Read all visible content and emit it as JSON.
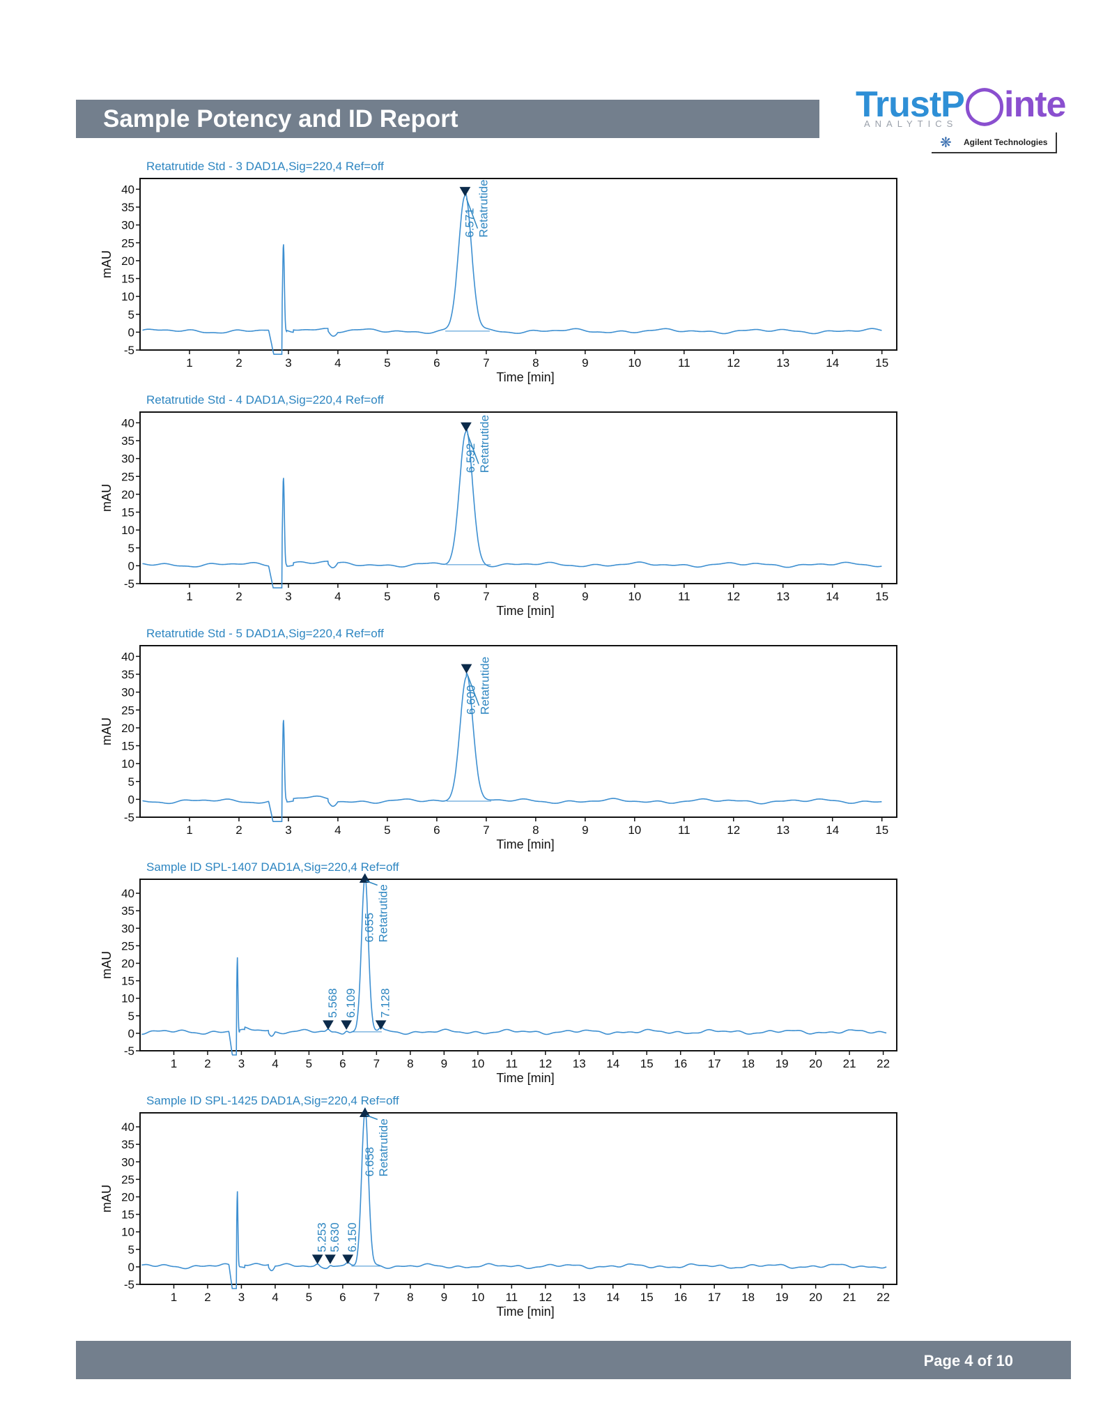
{
  "report": {
    "title": "Sample Potency and ID Report",
    "page_label": "Page 4 of 10"
  },
  "logo": {
    "brand_part1": "TrustP",
    "brand_part2": "inte",
    "tagline": "ANALYTICS",
    "partner": "Agilent Technologies",
    "color_primary": "#2e8fd6",
    "color_secondary": "#8a4fcf"
  },
  "colors": {
    "trace": "#3d8fd1",
    "header_bar": "#737f8d",
    "label": "#2e86c1"
  },
  "chart_data": [
    {
      "type": "line",
      "title": "Retatrutide Std - 3 DAD1A,Sig=220,4  Ref=off",
      "xlabel": "Time [min]",
      "ylabel": "mAU",
      "xlim": [
        0,
        15.3
      ],
      "ylim": [
        -5,
        43
      ],
      "xticks": [
        1,
        2,
        3,
        4,
        5,
        6,
        7,
        8,
        9,
        10,
        11,
        12,
        13,
        14,
        15
      ],
      "yticks": [
        -5,
        0,
        5,
        10,
        15,
        20,
        25,
        30,
        35,
        40
      ],
      "baseline": 0.3,
      "solvent_spike": {
        "dip_x": 2.72,
        "spike_x": 2.9,
        "height": 24.5
      },
      "peaks": [
        {
          "rt": 6.571,
          "height": 37.5,
          "sigma": 0.13,
          "label": "6.571",
          "name": "Retatrutide",
          "marker": "down"
        }
      ]
    },
    {
      "type": "line",
      "title": "Retatrutide Std - 4 DAD1A,Sig=220,4  Ref=off",
      "xlabel": "Time [min]",
      "ylabel": "mAU",
      "xlim": [
        0,
        15.3
      ],
      "ylim": [
        -5,
        43
      ],
      "xticks": [
        1,
        2,
        3,
        4,
        5,
        6,
        7,
        8,
        9,
        10,
        11,
        12,
        13,
        14,
        15
      ],
      "yticks": [
        -5,
        0,
        5,
        10,
        15,
        20,
        25,
        30,
        35,
        40
      ],
      "baseline": 0.3,
      "solvent_spike": {
        "dip_x": 2.72,
        "spike_x": 2.9,
        "height": 24.5
      },
      "peaks": [
        {
          "rt": 6.592,
          "height": 37,
          "sigma": 0.13,
          "label": "6.592",
          "name": "Retatrutide",
          "marker": "down"
        }
      ]
    },
    {
      "type": "line",
      "title": "Retatrutide Std - 5 DAD1A,Sig=220,4  Ref=off",
      "xlabel": "Time [min]",
      "ylabel": "mAU",
      "xlim": [
        0,
        15.3
      ],
      "ylim": [
        -5,
        43
      ],
      "xticks": [
        1,
        2,
        3,
        4,
        5,
        6,
        7,
        8,
        9,
        10,
        11,
        12,
        13,
        14,
        15
      ],
      "yticks": [
        -5,
        0,
        5,
        10,
        15,
        20,
        25,
        30,
        35,
        40
      ],
      "baseline": -0.5,
      "solvent_spike": {
        "dip_x": 2.72,
        "spike_x": 2.9,
        "height": 22.5
      },
      "peaks": [
        {
          "rt": 6.6,
          "height": 35.5,
          "sigma": 0.13,
          "label": "6.600",
          "name": "Retatrutide",
          "marker": "down"
        }
      ]
    },
    {
      "type": "line",
      "title": "Sample ID SPL-1407 DAD1A,Sig=220,4  Ref=off",
      "xlabel": "Time [min]",
      "ylabel": "mAU",
      "xlim": [
        0,
        22.4
      ],
      "ylim": [
        -5,
        44
      ],
      "xticks": [
        1,
        2,
        3,
        4,
        5,
        6,
        7,
        8,
        9,
        10,
        11,
        12,
        13,
        14,
        15,
        16,
        17,
        18,
        19,
        20,
        21,
        22
      ],
      "yticks": [
        -5,
        0,
        5,
        10,
        15,
        20,
        25,
        30,
        35,
        40
      ],
      "baseline": 0.4,
      "solvent_spike": {
        "dip_x": 2.75,
        "spike_x": 2.88,
        "height": 21.5
      },
      "peaks": [
        {
          "rt": 5.568,
          "height": 0.8,
          "sigma": 0.05,
          "label": "5.568",
          "name": "",
          "marker": "down"
        },
        {
          "rt": 6.109,
          "height": 0.8,
          "sigma": 0.05,
          "label": "6.109",
          "name": "",
          "marker": "down"
        },
        {
          "rt": 6.655,
          "height": 43.5,
          "sigma": 0.1,
          "label": "6.655",
          "name": "Retatrutide",
          "marker": "up"
        },
        {
          "rt": 7.128,
          "height": 0.8,
          "sigma": 0.05,
          "label": "7.128",
          "name": "",
          "marker": "down"
        }
      ]
    },
    {
      "type": "line",
      "title": "Sample ID SPL-1425 DAD1A,Sig=220,4  Ref=off",
      "xlabel": "Time [min]",
      "ylabel": "mAU",
      "xlim": [
        0,
        22.4
      ],
      "ylim": [
        -5,
        44
      ],
      "xticks": [
        1,
        2,
        3,
        4,
        5,
        6,
        7,
        8,
        9,
        10,
        11,
        12,
        13,
        14,
        15,
        16,
        17,
        18,
        19,
        20,
        21,
        22
      ],
      "yticks": [
        -5,
        0,
        5,
        10,
        15,
        20,
        25,
        30,
        35,
        40
      ],
      "baseline": 0.2,
      "solvent_spike": {
        "dip_x": 2.75,
        "spike_x": 2.88,
        "height": 21.5
      },
      "peaks": [
        {
          "rt": 5.253,
          "height": 0.6,
          "sigma": 0.05,
          "label": "5.253",
          "name": "",
          "marker": "down"
        },
        {
          "rt": 5.63,
          "height": 0.6,
          "sigma": 0.05,
          "label": "5.630",
          "name": "",
          "marker": "down"
        },
        {
          "rt": 6.15,
          "height": 0.6,
          "sigma": 0.05,
          "label": "6.150",
          "name": "",
          "marker": "down"
        },
        {
          "rt": 6.658,
          "height": 43.5,
          "sigma": 0.1,
          "label": "6.658",
          "name": "Retatrutide",
          "marker": "up"
        }
      ]
    }
  ]
}
